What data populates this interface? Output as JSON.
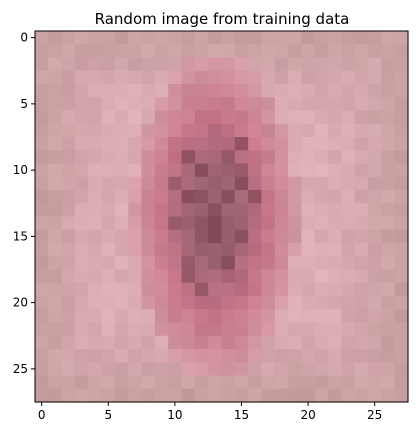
{
  "chart_data": {
    "type": "heatmap",
    "title": "Random image from training data",
    "xlabel": "",
    "ylabel": "",
    "grid": false,
    "rows": 28,
    "cols": 28,
    "xlim": [
      -0.5,
      27.5
    ],
    "ylim": [
      27.5,
      -0.5
    ],
    "x_ticks": [
      0,
      5,
      10,
      15,
      20,
      25
    ],
    "y_ticks": [
      0,
      5,
      10,
      15,
      20,
      25
    ],
    "x_tick_labels": [
      "0",
      "5",
      "10",
      "15",
      "20",
      "25"
    ],
    "y_tick_labels": [
      "0",
      "5",
      "10",
      "15",
      "20",
      "25"
    ],
    "colors": {
      "skin_light": "#dcadb4",
      "skin_edge": "#c9a0a2",
      "lesion_rim": "#c67488",
      "lesion_core": "#9a6270",
      "lesion_dark": "#7e4652",
      "axis": "#000000"
    }
  }
}
